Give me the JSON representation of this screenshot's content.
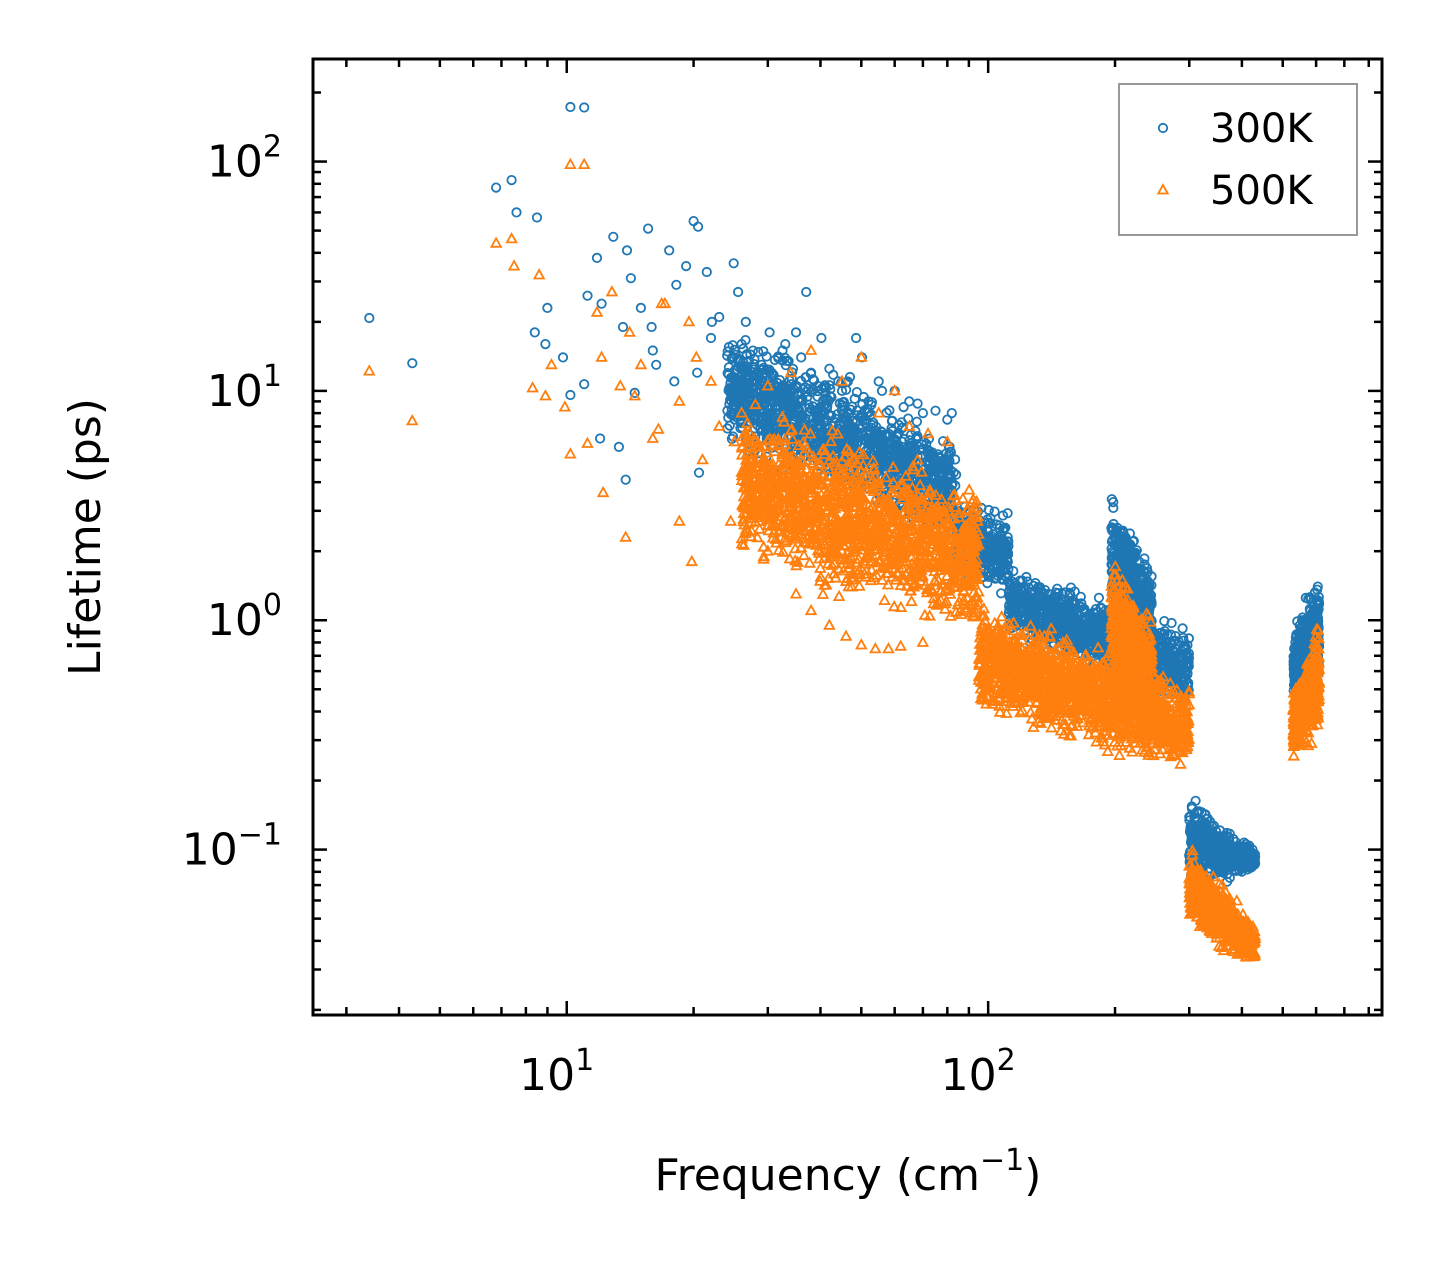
{
  "chart_data": {
    "type": "scatter",
    "x_scale": "log",
    "y_scale": "log",
    "xlabel": "Frequency (cm",
    "xlabel_sup": "−1",
    "xlabel_end": ")",
    "ylabel": "Lifetime (ps)",
    "xlim": [
      2.5,
      860
    ],
    "ylim": [
      0.019,
      280
    ],
    "x_ticks": [
      {
        "value": 10,
        "base": "10",
        "exp": "1"
      },
      {
        "value": 100,
        "base": "10",
        "exp": "2"
      }
    ],
    "y_ticks": [
      {
        "value": 0.1,
        "base": "10",
        "exp": "−1"
      },
      {
        "value": 1,
        "base": "10",
        "exp": "0"
      },
      {
        "value": 10,
        "base": "10",
        "exp": "1"
      },
      {
        "value": 100,
        "base": "10",
        "exp": "2"
      }
    ],
    "legend_position": "top-right",
    "series": [
      {
        "name": "300K",
        "marker": "circle",
        "color": "#1f77b4",
        "points": [
          [
            3.4,
            20.8
          ],
          [
            4.3,
            13.2
          ],
          [
            6.8,
            77
          ],
          [
            7.4,
            83
          ],
          [
            7.6,
            60
          ],
          [
            8.4,
            18
          ],
          [
            8.5,
            57
          ],
          [
            8.9,
            16
          ],
          [
            9.0,
            23
          ],
          [
            9.8,
            14
          ],
          [
            10.2,
            9.6
          ],
          [
            10.2,
            173
          ],
          [
            11.0,
            172
          ],
          [
            11.0,
            10.7
          ],
          [
            11.2,
            26
          ],
          [
            11.8,
            38
          ],
          [
            12.1,
            24
          ],
          [
            12.9,
            47
          ],
          [
            13.3,
            5.7
          ],
          [
            13.6,
            19
          ],
          [
            13.9,
            41
          ],
          [
            14.2,
            31
          ],
          [
            15.0,
            23
          ],
          [
            15.6,
            51
          ],
          [
            15.9,
            19
          ],
          [
            16.3,
            13
          ],
          [
            17.5,
            41
          ],
          [
            18.2,
            29
          ],
          [
            19.2,
            35
          ],
          [
            20.0,
            55
          ],
          [
            20.5,
            52
          ],
          [
            21.5,
            33
          ],
          [
            20.4,
            12
          ],
          [
            22.1,
            20
          ],
          [
            24.9,
            36
          ],
          [
            25.5,
            27
          ],
          [
            26.6,
            20
          ],
          [
            28.0,
            11
          ],
          [
            30.3,
            18
          ],
          [
            32.5,
            15
          ],
          [
            35.0,
            18
          ],
          [
            37.0,
            27
          ],
          [
            40.2,
            17
          ],
          [
            44.1,
            11
          ],
          [
            48.6,
            17
          ],
          [
            50.2,
            14
          ],
          [
            55.0,
            11
          ],
          [
            60.0,
            10
          ],
          [
            65.0,
            9
          ],
          [
            70.0,
            8
          ],
          [
            80.0,
            7.5
          ],
          [
            12,
            6.2
          ],
          [
            13.8,
            4.1
          ],
          [
            20.6,
            4.4
          ],
          [
            14.5,
            9.8
          ],
          [
            16,
            15
          ],
          [
            18,
            11
          ],
          [
            22,
            17
          ],
          [
            23,
            21
          ],
          [
            26,
            16
          ],
          [
            29,
            13
          ],
          [
            31,
            9
          ],
          [
            33,
            16
          ],
          [
            36,
            14
          ],
          [
            38,
            12
          ],
          [
            42,
            12.5
          ],
          [
            45,
            10
          ],
          [
            47,
            11.5
          ],
          [
            52,
            9
          ],
          [
            56,
            10
          ],
          [
            63,
            8.5
          ],
          [
            68,
            8.8
          ],
          [
            75,
            8.2
          ],
          [
            82,
            8
          ]
        ],
        "clusters": [
          {
            "x": [
              24,
              84
            ],
            "y_top": [
              22,
              7
            ],
            "y_bottom": [
              5,
              1.9
            ],
            "n": 1300
          },
          {
            "x": [
              84,
              112
            ],
            "y_top": [
              3.6,
              3.2
            ],
            "y_bottom": [
              1.4,
              1.2
            ],
            "n": 320
          },
          {
            "x": [
              112,
              300
            ],
            "y_top": [
              1.8,
              1.0
            ],
            "y_bottom": [
              0.8,
              0.38
            ],
            "n": 1100
          },
          {
            "x": [
              196,
              245
            ],
            "y_top": [
              3.7,
              1.9
            ],
            "y_bottom": [
              1.0,
              0.6
            ],
            "n": 450
          },
          {
            "x": [
              300,
              430
            ],
            "y_top": [
              0.19,
              0.1
            ],
            "y_bottom": [
              0.06,
              0.08
            ],
            "n": 600
          },
          {
            "x": [
              530,
              610
            ],
            "y_top": [
              0.9,
              1.85
            ],
            "y_bottom": [
              0.45,
              0.48
            ],
            "n": 500
          }
        ]
      },
      {
        "name": "500K",
        "marker": "triangle",
        "color": "#ff7f0e",
        "points": [
          [
            3.4,
            12.2
          ],
          [
            4.3,
            7.4
          ],
          [
            6.8,
            44
          ],
          [
            7.4,
            46
          ],
          [
            7.5,
            35
          ],
          [
            8.3,
            10.3
          ],
          [
            8.6,
            32
          ],
          [
            8.9,
            9.5
          ],
          [
            9.2,
            13
          ],
          [
            9.9,
            8.5
          ],
          [
            10.2,
            5.3
          ],
          [
            10.2,
            97
          ],
          [
            11.0,
            97
          ],
          [
            11.2,
            5.9
          ],
          [
            11.8,
            22
          ],
          [
            12.1,
            14
          ],
          [
            12.2,
            3.6
          ],
          [
            12.8,
            27
          ],
          [
            13.4,
            10.5
          ],
          [
            13.8,
            2.3
          ],
          [
            14.1,
            18
          ],
          [
            15.0,
            13
          ],
          [
            16.0,
            6.2
          ],
          [
            16.8,
            24
          ],
          [
            17.1,
            24
          ],
          [
            18.5,
            2.7
          ],
          [
            19.5,
            20
          ],
          [
            19.8,
            1.8
          ],
          [
            20.3,
            14
          ],
          [
            22.0,
            11
          ],
          [
            24.5,
            2.7
          ],
          [
            25.0,
            6
          ],
          [
            28,
            6
          ],
          [
            30,
            2
          ],
          [
            35,
            1.3
          ],
          [
            38,
            1.1
          ],
          [
            42,
            0.95
          ],
          [
            46,
            0.85
          ],
          [
            50,
            0.78
          ],
          [
            54,
            0.75
          ],
          [
            58,
            0.75
          ],
          [
            62,
            0.77
          ],
          [
            70,
            0.8
          ],
          [
            14.5,
            9.5
          ],
          [
            16.5,
            6.8
          ],
          [
            18.5,
            9
          ],
          [
            21,
            5
          ],
          [
            23,
            7
          ],
          [
            26,
            8
          ],
          [
            30,
            10.5
          ],
          [
            34,
            12
          ],
          [
            38,
            15
          ],
          [
            45,
            11
          ],
          [
            50,
            14
          ],
          [
            55,
            8
          ],
          [
            60,
            10
          ],
          [
            65,
            7
          ],
          [
            72,
            6.5
          ],
          [
            80,
            6
          ]
        ],
        "clusters": [
          {
            "x": [
              26,
              95
            ],
            "y_top": [
              10,
              4.5
            ],
            "y_bottom": [
              1.6,
              0.72
            ],
            "n": 1500
          },
          {
            "x": [
              95,
              300
            ],
            "y_top": [
              1.3,
              0.6
            ],
            "y_bottom": [
              0.35,
              0.2
            ],
            "n": 1400
          },
          {
            "x": [
              196,
              245
            ],
            "y_top": [
              2.2,
              1.1
            ],
            "y_bottom": [
              0.45,
              0.3
            ],
            "n": 450
          },
          {
            "x": [
              300,
              430
            ],
            "y_top": [
              0.11,
              0.05
            ],
            "y_bottom": [
              0.04,
              0.03
            ],
            "n": 600
          },
          {
            "x": [
              530,
              610
            ],
            "y_top": [
              0.5,
              1.05
            ],
            "y_bottom": [
              0.24,
              0.3
            ],
            "n": 500
          }
        ]
      }
    ]
  }
}
